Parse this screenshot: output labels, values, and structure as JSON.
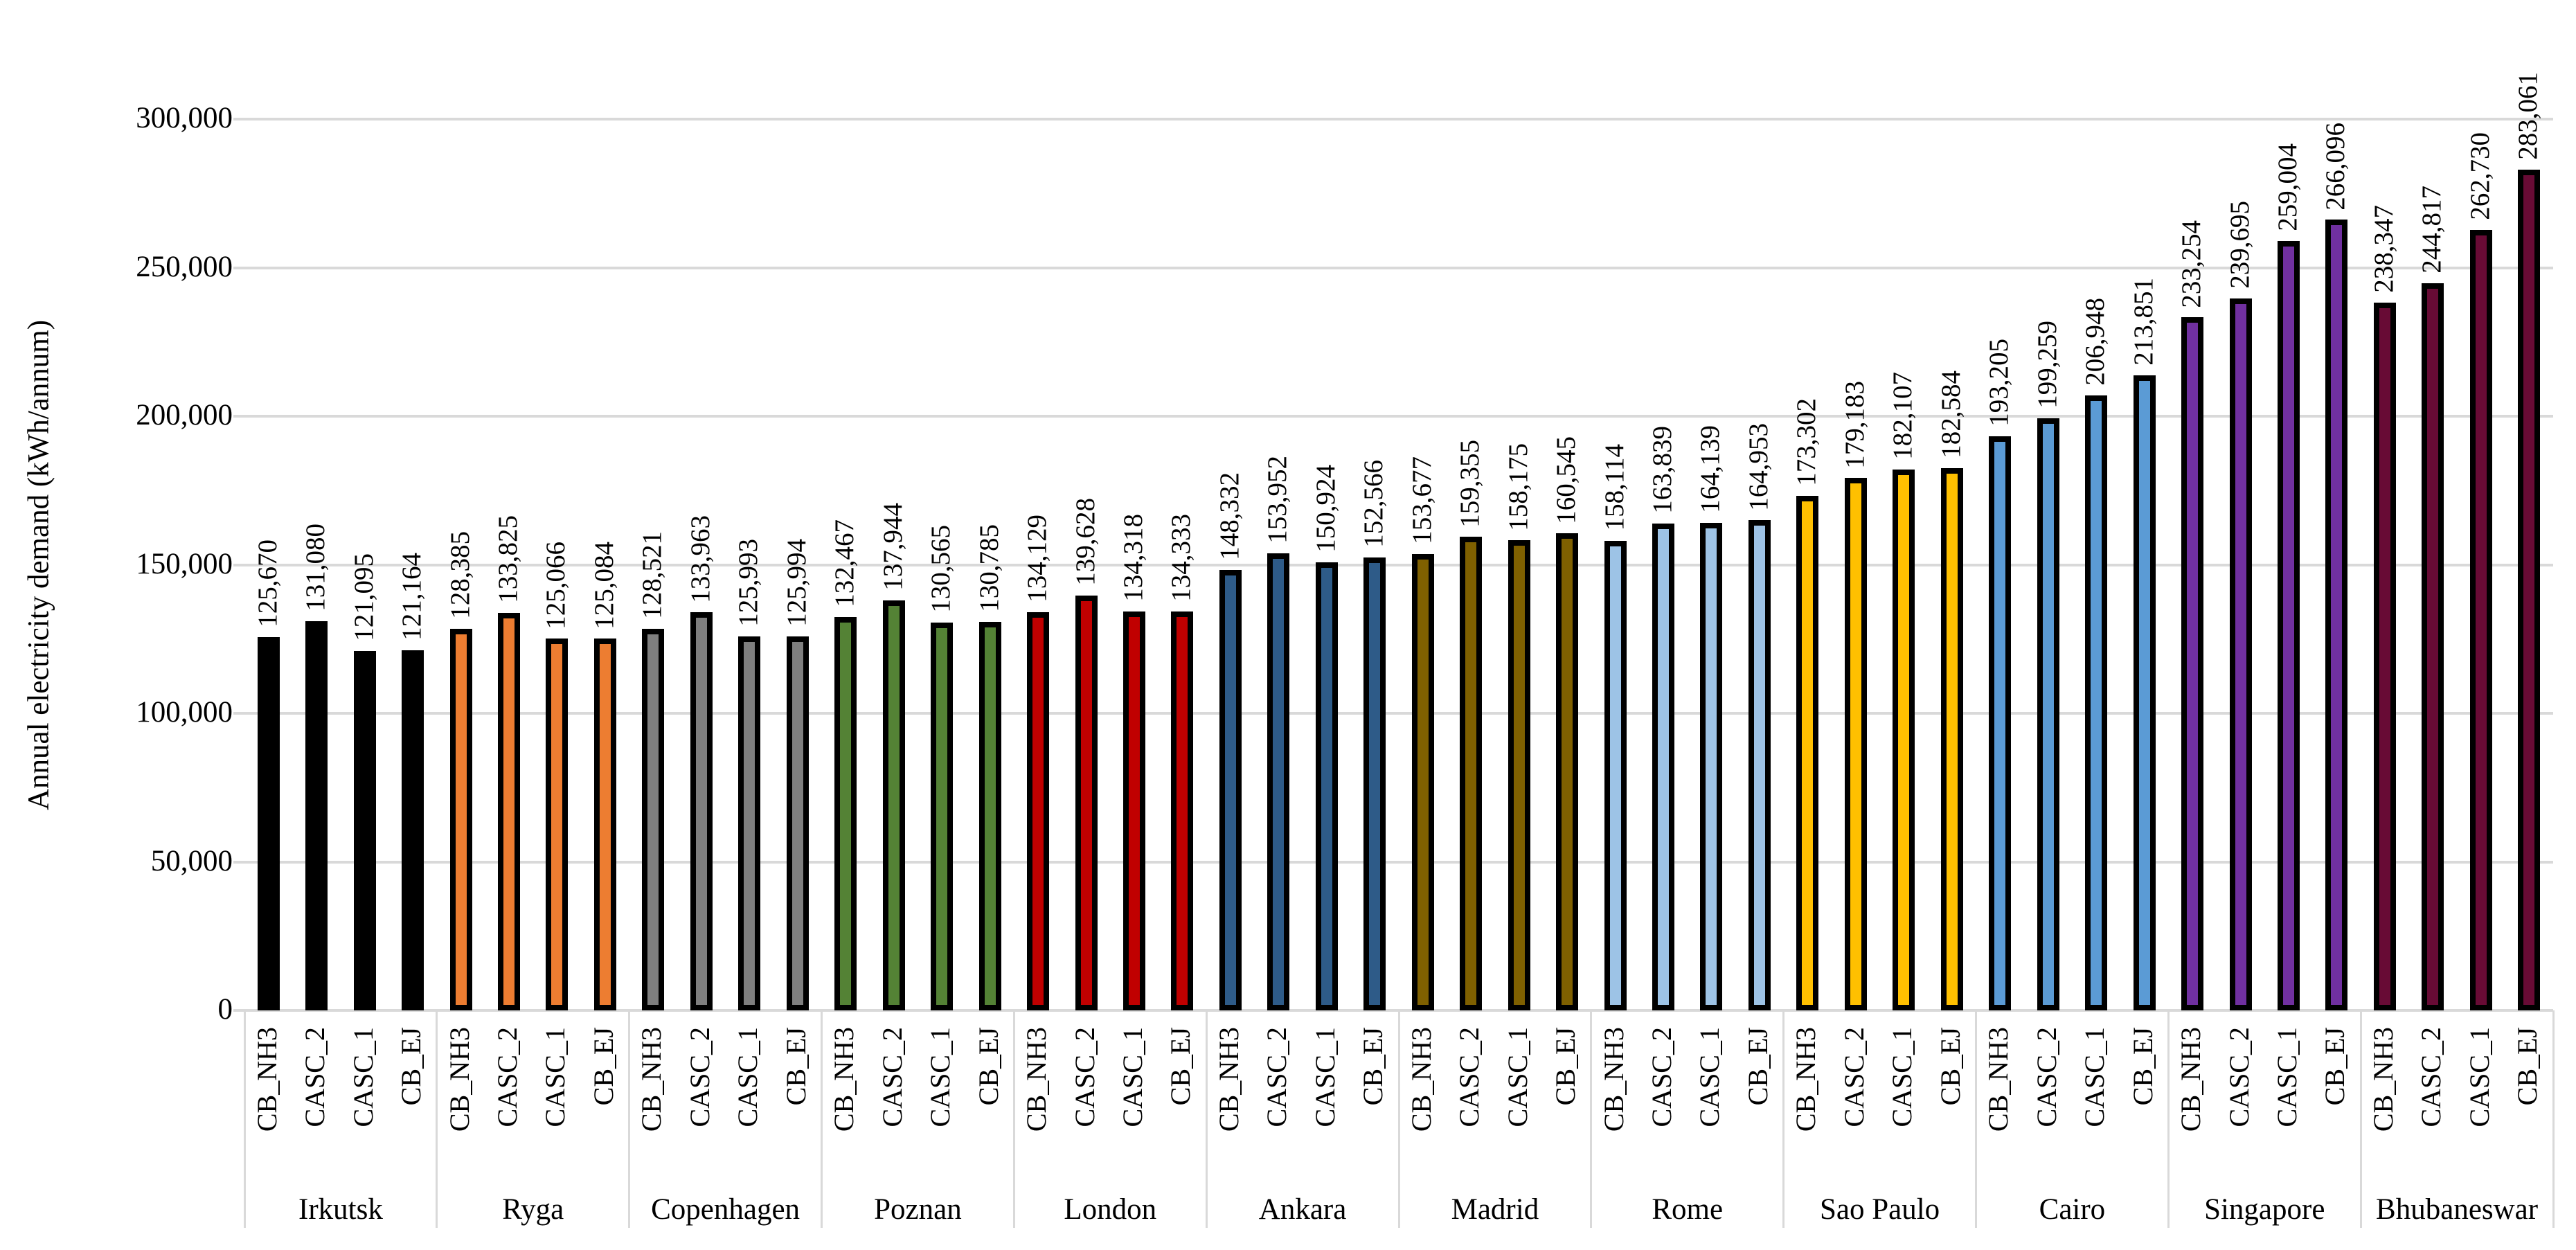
{
  "chart_data": {
    "type": "bar",
    "title": "",
    "xlabel": "",
    "ylabel": "Annual electricity demand (kWh/annum)",
    "ylim": [
      0,
      300000
    ],
    "ytick_step": 50000,
    "ytick_labels": [
      "0",
      "50,000",
      "100,000",
      "150,000",
      "200,000",
      "250,000",
      "300,000"
    ],
    "grid": true,
    "legend": "none",
    "bar_outline_color": "#000000",
    "gridline_color": "#d9d9d9",
    "scenario_labels": [
      "CB_NH3",
      "CASC_2",
      "CASC_1",
      "CB_EJ"
    ],
    "categories": [
      "Irkutsk",
      "Ryga",
      "Copenhagen",
      "Poznan",
      "London",
      "Ankara",
      "Madrid",
      "Rome",
      "Sao Paulo",
      "Cairo",
      "Singapore",
      "Bhubaneswar"
    ],
    "groups": [
      {
        "city": "Irkutsk",
        "color": "#000000",
        "values": [
          125670,
          131080,
          121095,
          121164
        ]
      },
      {
        "city": "Ryga",
        "color": "#ED7D31",
        "values": [
          128385,
          133825,
          125066,
          125084
        ]
      },
      {
        "city": "Copenhagen",
        "color": "#7F7F7F",
        "values": [
          128521,
          133963,
          125993,
          125994
        ]
      },
      {
        "city": "Poznan",
        "color": "#548235",
        "values": [
          132467,
          137944,
          130565,
          130785
        ]
      },
      {
        "city": "London",
        "color": "#C00000",
        "values": [
          134129,
          139628,
          134318,
          134333
        ]
      },
      {
        "city": "Ankara",
        "color": "#2E5B88",
        "values": [
          148332,
          153952,
          150924,
          152566
        ]
      },
      {
        "city": "Madrid",
        "color": "#7F6000",
        "values": [
          153677,
          159355,
          158175,
          160545
        ]
      },
      {
        "city": "Rome",
        "color": "#9DC3E6",
        "values": [
          158114,
          163839,
          164139,
          164953
        ]
      },
      {
        "city": "Sao Paulo",
        "color": "#FFC000",
        "values": [
          173302,
          179183,
          182107,
          182584
        ]
      },
      {
        "city": "Cairo",
        "color": "#5B9BD5",
        "values": [
          193205,
          199259,
          206948,
          213851
        ]
      },
      {
        "city": "Singapore",
        "color": "#7030A0",
        "values": [
          233254,
          239695,
          259004,
          266096
        ]
      },
      {
        "city": "Bhubaneswar",
        "color": "#680B35",
        "values": [
          238347,
          244817,
          262730,
          283061
        ]
      }
    ]
  }
}
